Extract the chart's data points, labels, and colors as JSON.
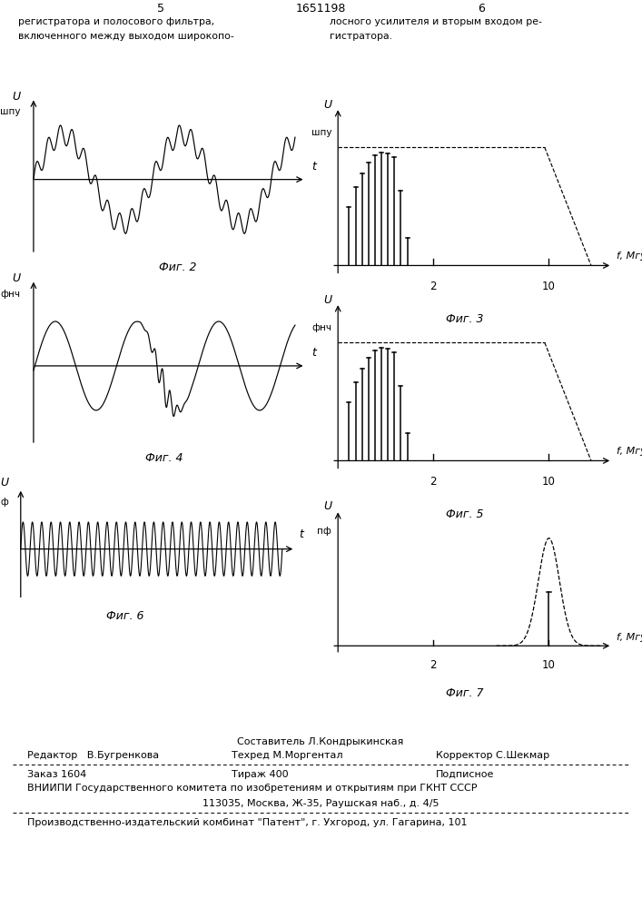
{
  "page_number_left": "5",
  "page_number_right": "6",
  "patent_number": "1651198",
  "header_left1": "регистратора и полосового фильтра,",
  "header_left2": "включенного между выходом широкопо-",
  "header_right1": "лосного усилителя и вторым входом ре-",
  "header_right2": "гистратора.",
  "fig2_label": "Фиг. 2",
  "fig3_label": "Фиг. 3",
  "fig4_label": "Фиг. 4",
  "fig5_label": "Фиг. 5",
  "fig6_label": "Фиг. 6",
  "fig7_label": "Фиг. 7",
  "footer_compositor": "Составитель Л.Кондрыкинская",
  "footer_editor": "Редактор   В.Бугренкова",
  "footer_techred": "Техред М.Моргентал",
  "footer_corrector": "Корректор С.Шекмар",
  "footer_order": "Заказ 1604",
  "footer_circulation": "Тираж 400",
  "footer_subscription": "Подписное",
  "footer_vniip": "ВНИИПИ Государственного комитета по изобретениям и открытиям при ГКНТ СССР",
  "footer_address": "113035, Москва, Ж-35, Раушская наб., д. 4/5",
  "footer_factory": "Производственно-издательский комбинат \"Патент\", г. Ухгород, ул. Гагарина, 101",
  "bg_color": "#ffffff"
}
